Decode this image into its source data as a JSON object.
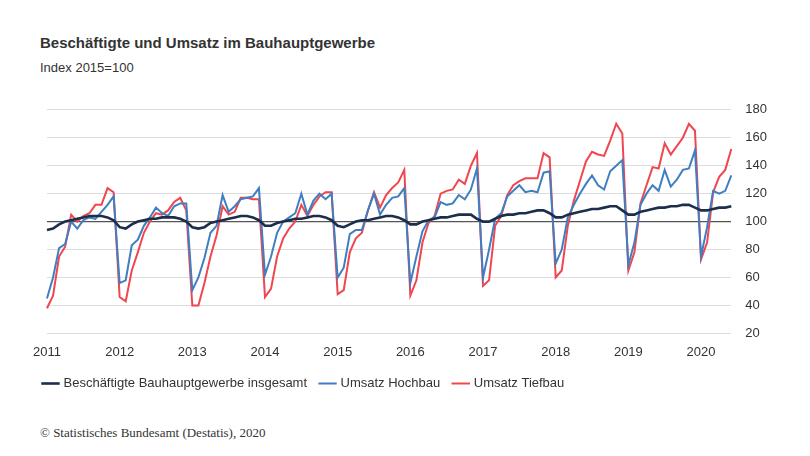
{
  "chart_data": {
    "type": "line",
    "title": "Beschäftigte und Umsatz im Bauhauptgewerbe",
    "subtitle": "Index 2015=100",
    "source": "© Statistisches Bundesamt (Destatis), 2020",
    "categories": [
      "2011",
      null,
      null,
      null,
      null,
      null,
      null,
      null,
      null,
      null,
      null,
      null,
      "2012",
      null,
      null,
      null,
      null,
      null,
      null,
      null,
      null,
      null,
      null,
      null,
      "2013",
      null,
      null,
      null,
      null,
      null,
      null,
      null,
      null,
      null,
      null,
      null,
      "2014",
      null,
      null,
      null,
      null,
      null,
      null,
      null,
      null,
      null,
      null,
      null,
      "2015",
      null,
      null,
      null,
      null,
      null,
      null,
      null,
      null,
      null,
      null,
      null,
      "2016",
      null,
      null,
      null,
      null,
      null,
      null,
      null,
      null,
      null,
      null,
      null,
      "2017",
      null,
      null,
      null,
      null,
      null,
      null,
      null,
      null,
      null,
      null,
      null,
      "2018",
      null,
      null,
      null,
      null,
      null,
      null,
      null,
      null,
      null,
      null,
      null,
      "2019",
      null,
      null,
      null,
      null,
      null,
      null,
      null,
      null,
      null,
      null,
      null,
      "2020",
      null,
      null,
      null,
      null,
      null
    ],
    "series": [
      {
        "name": "Umsatz Hochbau",
        "color": "#3f7fc1",
        "values": [
          45,
          60,
          81,
          84,
          100,
          95,
          101,
          103,
          102,
          107,
          112,
          118,
          56,
          58,
          83,
          87,
          97,
          103,
          110,
          106,
          104,
          111,
          113,
          113,
          51,
          60,
          74,
          92,
          97,
          119,
          107,
          111,
          116,
          117,
          118,
          124,
          62,
          75,
          92,
          100,
          103,
          106,
          120,
          105,
          115,
          120,
          116,
          120,
          60,
          67,
          91,
          94,
          94,
          108,
          120,
          105,
          112,
          117,
          118,
          124,
          56,
          75,
          93,
          101,
          103,
          114,
          112,
          113,
          119,
          116,
          123,
          138,
          60,
          80,
          102,
          106,
          118,
          122,
          126,
          121,
          122,
          121,
          135,
          136,
          70,
          80,
          103,
          112,
          120,
          127,
          133,
          126,
          123,
          136,
          140,
          144,
          69,
          85,
          112,
          120,
          126,
          122,
          137,
          125,
          130,
          137,
          138,
          151,
          75,
          96,
          122,
          120,
          122,
          133
        ]
      },
      {
        "name": "Umsatz Tiefbau",
        "color": "#ef4650",
        "values": [
          38,
          47,
          75,
          82,
          105,
          100,
          104,
          106,
          112,
          112,
          124,
          121,
          46,
          43,
          65,
          78,
          92,
          100,
          106,
          105,
          108,
          114,
          117,
          108,
          40,
          40,
          56,
          75,
          90,
          111,
          105,
          107,
          117,
          117,
          116,
          116,
          46,
          52,
          75,
          88,
          95,
          100,
          112,
          104,
          112,
          118,
          121,
          121,
          48,
          51,
          78,
          88,
          92,
          108,
          121,
          110,
          119,
          124,
          128,
          137,
          47,
          58,
          85,
          99,
          104,
          120,
          122,
          123,
          130,
          127,
          140,
          149,
          54,
          58,
          97,
          104,
          119,
          126,
          129,
          131,
          131,
          131,
          149,
          146,
          60,
          65,
          97,
          115,
          129,
          143,
          150,
          148,
          147,
          158,
          170,
          163,
          65,
          78,
          113,
          126,
          139,
          138,
          156,
          148,
          154,
          160,
          170,
          165,
          73,
          85,
          121,
          132,
          137,
          152
        ]
      },
      {
        "name": "Beschäftigte Bauhauptgewerbe insgesamt",
        "color": "#1b2f4d",
        "values": [
          94,
          95,
          98,
          100,
          101,
          102,
          103,
          104,
          104,
          104,
          103,
          101,
          96,
          95,
          98,
          100,
          101,
          102,
          102,
          103,
          103,
          103,
          102,
          100,
          96,
          95,
          96,
          99,
          100,
          101,
          102,
          103,
          104,
          104,
          103,
          101,
          97,
          97,
          99,
          100,
          101,
          102,
          102,
          103,
          104,
          104,
          103,
          101,
          97,
          96,
          98,
          100,
          101,
          101,
          102,
          103,
          104,
          104,
          103,
          101,
          98,
          98,
          100,
          101,
          102,
          103,
          103,
          104,
          105,
          105,
          105,
          102,
          100,
          100,
          102,
          104,
          105,
          105,
          106,
          106,
          107,
          108,
          108,
          106,
          103,
          103,
          105,
          106,
          107,
          108,
          109,
          109,
          110,
          111,
          111,
          108,
          105,
          105,
          107,
          108,
          109,
          110,
          110,
          111,
          111,
          112,
          112,
          110,
          108,
          108,
          109,
          110,
          110,
          111
        ]
      }
    ],
    "ylim": [
      20,
      180
    ],
    "yticks": [
      20,
      40,
      60,
      80,
      100,
      120,
      140,
      160,
      180
    ],
    "grid": true,
    "legend": "bottom"
  }
}
